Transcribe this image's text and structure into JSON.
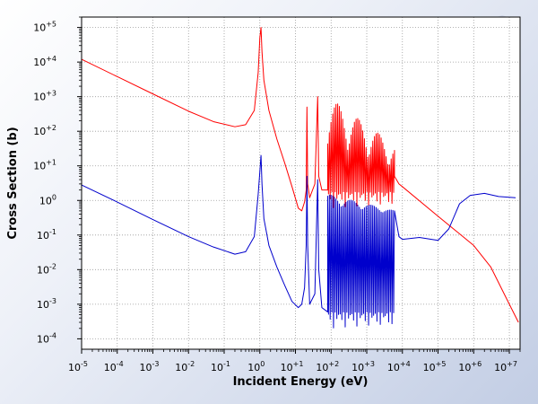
{
  "chart_data": {
    "type": "line",
    "title": "",
    "xlabel": "Incident Energy (eV)",
    "ylabel": "Cross Section (b)",
    "xscale": "log",
    "yscale": "log",
    "xlim": [
      1e-05,
      20000000.0
    ],
    "ylim": [
      5e-05,
      200000.0
    ],
    "grid": true,
    "legend": "none",
    "x_ticks": [
      {
        "base": "10",
        "exp": "-5"
      },
      {
        "base": "10",
        "exp": "-4"
      },
      {
        "base": "10",
        "exp": "-3"
      },
      {
        "base": "10",
        "exp": "-2"
      },
      {
        "base": "10",
        "exp": "-1"
      },
      {
        "base": "10",
        "exp": "0"
      },
      {
        "base": "10",
        "exp": "+1"
      },
      {
        "base": "10",
        "exp": "+2"
      },
      {
        "base": "10",
        "exp": "+3"
      },
      {
        "base": "10",
        "exp": "+4"
      },
      {
        "base": "10",
        "exp": "+5"
      },
      {
        "base": "10",
        "exp": "+6"
      },
      {
        "base": "10",
        "exp": "+7"
      }
    ],
    "y_ticks": [
      {
        "base": "10",
        "exp": "+5"
      },
      {
        "base": "10",
        "exp": "+4"
      },
      {
        "base": "10",
        "exp": "+3"
      },
      {
        "base": "10",
        "exp": "+2"
      },
      {
        "base": "10",
        "exp": "+1"
      },
      {
        "base": "10",
        "exp": "0"
      },
      {
        "base": "10",
        "exp": "-1"
      },
      {
        "base": "10",
        "exp": "-2"
      },
      {
        "base": "10",
        "exp": "-3"
      },
      {
        "base": "10",
        "exp": "-4"
      }
    ],
    "series": [
      {
        "color": "#ff0000",
        "points": [
          [
            1e-05,
            12000
          ],
          [
            0.0001,
            3800
          ],
          [
            0.001,
            1200
          ],
          [
            0.01,
            380
          ],
          [
            0.05,
            190
          ],
          [
            0.2,
            135
          ],
          [
            0.4,
            155
          ],
          [
            0.7,
            400
          ],
          [
            0.9,
            5000
          ],
          [
            1.0,
            50000
          ],
          [
            1.08,
            100000
          ],
          [
            1.15,
            20000
          ],
          [
            1.3,
            3000
          ],
          [
            1.8,
            400
          ],
          [
            3,
            60
          ],
          [
            5,
            12
          ],
          [
            8,
            2.5
          ],
          [
            12,
            0.6
          ],
          [
            15,
            0.5
          ],
          [
            18,
            0.9
          ],
          [
            20,
            2
          ],
          [
            21,
            500
          ],
          [
            22,
            3
          ],
          [
            25,
            1.2
          ],
          [
            35,
            3
          ],
          [
            42,
            1000
          ],
          [
            45,
            5
          ],
          [
            55,
            2
          ],
          [
            80,
            2
          ]
        ],
        "resonance_band": {
          "x_range": [
            80,
            6000
          ],
          "floor": 0.6,
          "ceiling": 1000,
          "ceiling_end": 40,
          "count": 40
        },
        "tail_points": [
          [
            6000,
            5
          ],
          [
            8000,
            3
          ],
          [
            10000.0,
            2.5
          ],
          [
            100000.0,
            0.35
          ],
          [
            1000000.0,
            0.05
          ],
          [
            3000000.0,
            0.012
          ],
          [
            10000000.0,
            0.001
          ],
          [
            18000000.0,
            0.0003
          ]
        ]
      },
      {
        "color": "#0000cc",
        "points": [
          [
            1e-05,
            2.8
          ],
          [
            0.0001,
            0.9
          ],
          [
            0.001,
            0.28
          ],
          [
            0.01,
            0.09
          ],
          [
            0.05,
            0.045
          ],
          [
            0.2,
            0.028
          ],
          [
            0.4,
            0.033
          ],
          [
            0.7,
            0.09
          ],
          [
            0.9,
            1.5
          ],
          [
            1.08,
            20
          ],
          [
            1.15,
            3
          ],
          [
            1.3,
            0.3
          ],
          [
            1.8,
            0.05
          ],
          [
            3,
            0.012
          ],
          [
            5,
            0.0035
          ],
          [
            8,
            0.0012
          ],
          [
            12,
            0.0008
          ],
          [
            15,
            0.001
          ],
          [
            18,
            0.003
          ],
          [
            20,
            0.05
          ],
          [
            21,
            5
          ],
          [
            22,
            0.05
          ],
          [
            25,
            0.001
          ],
          [
            35,
            0.002
          ],
          [
            42,
            4
          ],
          [
            45,
            0.01
          ],
          [
            55,
            0.0008
          ],
          [
            80,
            0.0006
          ]
        ],
        "resonance_band": {
          "x_range": [
            80,
            6000
          ],
          "floor": 0.0002,
          "ceiling": 1.5,
          "ceiling_end": 0.5,
          "count": 40
        },
        "tail_points": [
          [
            6000,
            0.5
          ],
          [
            8000,
            0.09
          ],
          [
            10000.0,
            0.075
          ],
          [
            30000.0,
            0.085
          ],
          [
            100000.0,
            0.07
          ],
          [
            200000.0,
            0.15
          ],
          [
            400000.0,
            0.8
          ],
          [
            800000.0,
            1.4
          ],
          [
            2000000.0,
            1.6
          ],
          [
            5000000.0,
            1.3
          ],
          [
            15000000.0,
            1.2
          ]
        ]
      }
    ]
  }
}
